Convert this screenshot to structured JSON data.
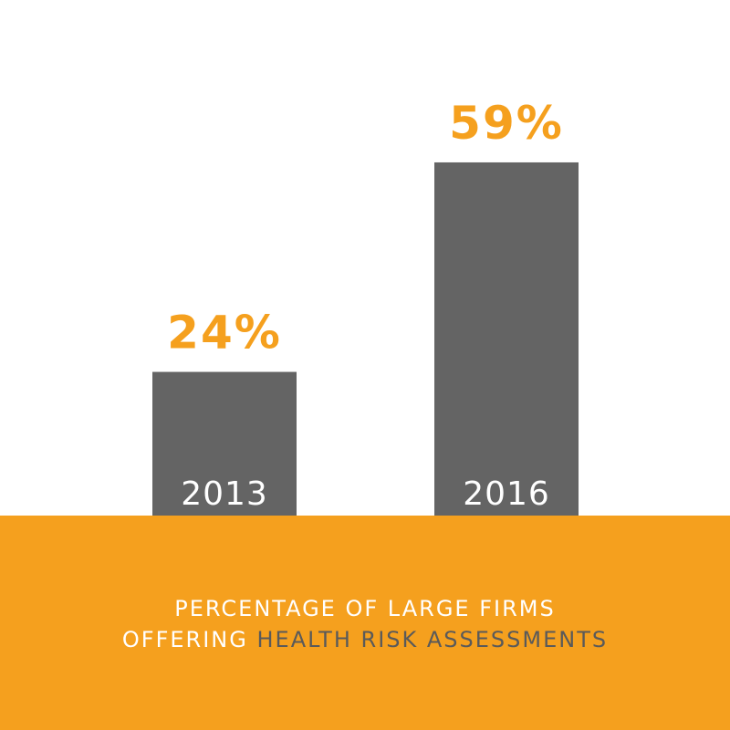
{
  "chart_data": {
    "type": "bar",
    "title": [
      "PERCENTAGE OF LARGE FIRMS",
      "OFFERING",
      "HEALTH RISK ASSESSMENTS"
    ],
    "categories": [
      "2013",
      "2016"
    ],
    "values": [
      24,
      59
    ],
    "value_labels": [
      "24%",
      "59%"
    ],
    "color": "#646464",
    "label_color": "#f5a01e",
    "band_color": "#f5a01e"
  }
}
